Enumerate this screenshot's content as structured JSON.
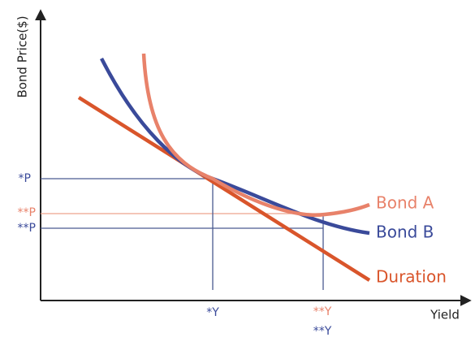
{
  "axes": {
    "y_label": "Bond Price($)",
    "x_label": "Yield"
  },
  "price_labels": [
    "*P",
    "**P",
    "**P"
  ],
  "yield_labels": [
    "*Y",
    "**Y",
    "**Y"
  ],
  "curves": [
    "Bond A",
    "Bond B",
    "Duration"
  ]
}
